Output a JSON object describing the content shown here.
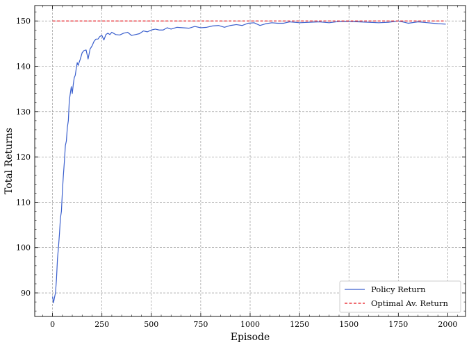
{
  "chart_data": {
    "type": "line",
    "title": "",
    "xlabel": "Episode",
    "ylabel": "Total Returns",
    "xlim": [
      -90,
      2090
    ],
    "ylim": [
      84.8,
      153.4
    ],
    "x_ticks": [
      0,
      250,
      500,
      750,
      1000,
      1250,
      1500,
      1750,
      2000
    ],
    "y_ticks": [
      90,
      100,
      110,
      120,
      130,
      140,
      150
    ],
    "grid": true,
    "legend_position": "lower-right",
    "series": [
      {
        "name": "Policy Return",
        "color": "#3a5fcd",
        "style": "solid",
        "x": [
          0,
          5,
          10,
          15,
          20,
          25,
          30,
          35,
          40,
          45,
          50,
          55,
          60,
          65,
          70,
          75,
          80,
          85,
          90,
          95,
          100,
          105,
          110,
          115,
          120,
          125,
          130,
          135,
          140,
          150,
          160,
          170,
          180,
          190,
          200,
          210,
          220,
          230,
          240,
          250,
          260,
          270,
          280,
          290,
          300,
          320,
          340,
          360,
          380,
          400,
          420,
          440,
          460,
          480,
          500,
          520,
          540,
          560,
          580,
          600,
          630,
          660,
          690,
          720,
          750,
          780,
          810,
          840,
          870,
          900,
          930,
          960,
          990,
          1020,
          1050,
          1080,
          1110,
          1140,
          1170,
          1200,
          1250,
          1300,
          1350,
          1400,
          1450,
          1500,
          1550,
          1600,
          1650,
          1700,
          1750,
          1800,
          1850,
          1900,
          1950,
          1990
        ],
        "y": [
          89.2,
          87.8,
          89.0,
          90.0,
          93.0,
          97.5,
          100.0,
          103.0,
          106.5,
          108.0,
          112.5,
          116.0,
          119.0,
          122.5,
          123.5,
          126.5,
          128.0,
          132.5,
          134.0,
          135.5,
          134.0,
          136.0,
          137.5,
          138.0,
          139.5,
          140.8,
          140.2,
          140.9,
          141.5,
          143.0,
          143.5,
          143.6,
          141.6,
          143.8,
          144.5,
          145.5,
          146.0,
          146.0,
          146.6,
          146.8,
          145.8,
          147.0,
          147.3,
          147.0,
          147.5,
          147.0,
          146.9,
          147.3,
          147.5,
          146.8,
          147.0,
          147.2,
          147.8,
          147.6,
          148.0,
          148.2,
          148.0,
          148.0,
          148.5,
          148.2,
          148.6,
          148.5,
          148.4,
          148.8,
          148.5,
          148.6,
          148.9,
          149.0,
          148.6,
          149.0,
          149.2,
          149.0,
          149.5,
          149.6,
          149.0,
          149.4,
          149.6,
          149.5,
          149.5,
          149.8,
          149.6,
          149.7,
          149.8,
          149.6,
          149.9,
          149.9,
          149.8,
          149.7,
          149.6,
          149.7,
          150.0,
          149.5,
          149.8,
          149.6,
          149.4,
          149.3
        ]
      },
      {
        "name": "Optimal Av. Return",
        "color": "#e8141b",
        "style": "dashed",
        "x": [
          0,
          1990
        ],
        "y": [
          150,
          150
        ]
      }
    ]
  }
}
